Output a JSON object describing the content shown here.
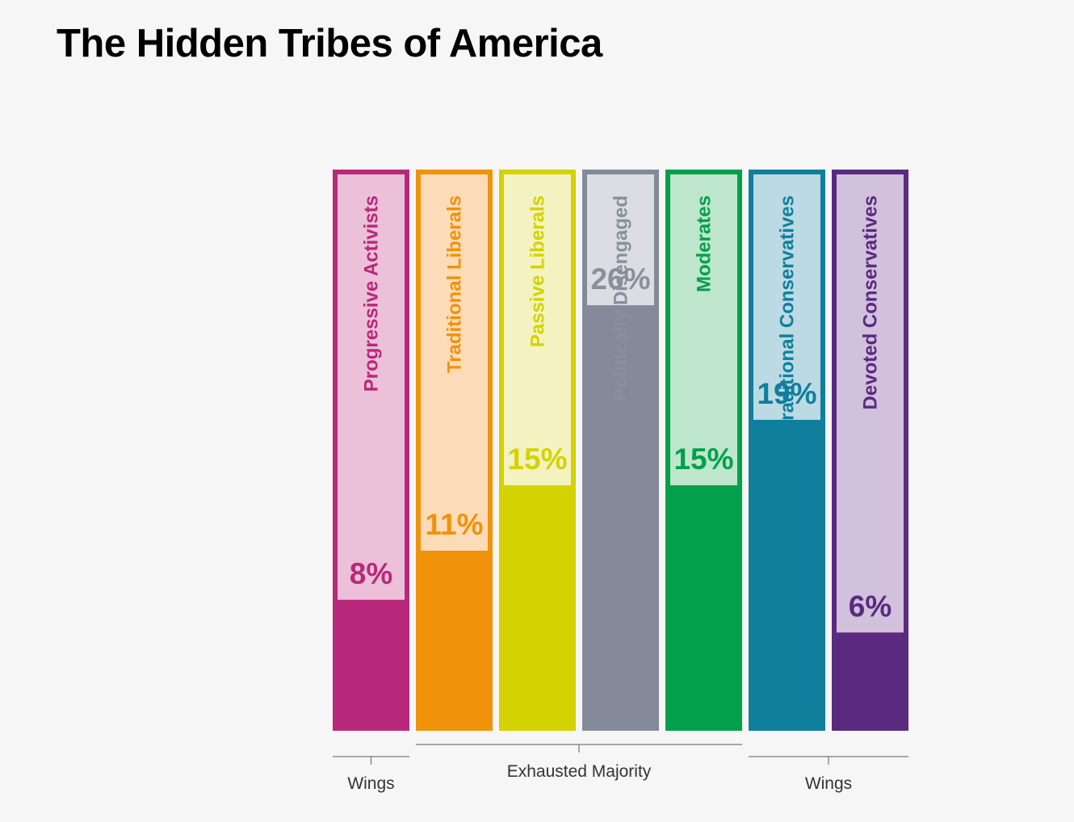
{
  "title": "The Hidden Tribes of America",
  "chart_data": {
    "type": "bar",
    "title": "The Hidden Tribes of America",
    "categories": [
      "Progressive Activists",
      "Traditional Liberals",
      "Passive Liberals",
      "Politically Disengaged",
      "Moderates",
      "Traditional Conservatives",
      "Devoted Conservatives"
    ],
    "values": [
      8,
      11,
      15,
      26,
      15,
      19,
      6
    ],
    "value_labels": [
      "8%",
      "11%",
      "15%",
      "26%",
      "15%",
      "19%",
      "6%"
    ],
    "unit": "%",
    "colors": [
      "#b8287a",
      "#f0920a",
      "#d4d200",
      "#858a9a",
      "#02a04b",
      "#107f9e",
      "#5a2a80"
    ],
    "light_colors": [
      "#ebc0d8",
      "#fcdcb8",
      "#f3f2c0",
      "#dcdde2",
      "#bee6cc",
      "#bcdae3",
      "#d1c1dc"
    ],
    "text_colors": [
      "#b8287a",
      "#f0920a",
      "#d4d200",
      "#8a8f9c",
      "#02a04b",
      "#107f9e",
      "#5a2a80"
    ],
    "groups": [
      {
        "label": "Wings",
        "from": 0,
        "to": 0
      },
      {
        "label": "Exhausted Majority",
        "from": 1,
        "to": 4
      },
      {
        "label": "Wings",
        "from": 5,
        "to": 6
      }
    ],
    "ylim": [
      0,
      34
    ],
    "grid": false,
    "legend": "none"
  }
}
